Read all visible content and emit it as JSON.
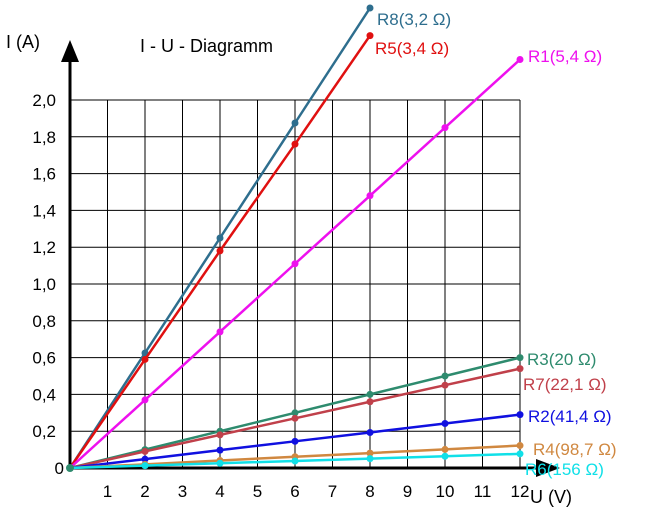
{
  "chart_data": {
    "type": "line",
    "title": "I - U - Diagramm",
    "xlabel": "U (V)",
    "ylabel": "I (A)",
    "xlim": [
      0,
      12
    ],
    "ylim": [
      0,
      2.0
    ],
    "x_ticks": [
      "1",
      "2",
      "3",
      "4",
      "5",
      "6",
      "7",
      "8",
      "9",
      "10",
      "11",
      "12"
    ],
    "y_ticks": [
      "0,2",
      "0,4",
      "0,6",
      "0,8",
      "1,0",
      "1,2",
      "1,4",
      "1,6",
      "1,8",
      "2,0"
    ],
    "origin_label": "0",
    "grid": true,
    "series": [
      {
        "name": "R8(3,2 Ω)",
        "color": "#2e6e8e",
        "x": [
          0,
          2,
          4,
          6,
          8
        ],
        "y": [
          0,
          0.625,
          1.25,
          1.875,
          2.5
        ]
      },
      {
        "name": "R5(3,4 Ω)",
        "color": "#e01010",
        "x": [
          0,
          2,
          4,
          6,
          8
        ],
        "y": [
          0,
          0.59,
          1.18,
          1.76,
          2.35
        ]
      },
      {
        "name": "R1(5,4 Ω)",
        "color": "#ee10ee",
        "x": [
          0,
          2,
          4,
          6,
          8,
          10,
          12
        ],
        "y": [
          0,
          0.37,
          0.74,
          1.11,
          1.48,
          1.85,
          2.22
        ]
      },
      {
        "name": "R3(20 Ω)",
        "color": "#2e8b6e",
        "x": [
          0,
          2,
          4,
          6,
          8,
          10,
          12
        ],
        "y": [
          0,
          0.1,
          0.2,
          0.3,
          0.4,
          0.5,
          0.6
        ]
      },
      {
        "name": "R7(22,1 Ω)",
        "color": "#c0404a",
        "x": [
          0,
          2,
          4,
          6,
          8,
          10,
          12
        ],
        "y": [
          0,
          0.09,
          0.18,
          0.27,
          0.36,
          0.45,
          0.54
        ]
      },
      {
        "name": "R2(41,4  Ω)",
        "color": "#1010e0",
        "x": [
          0,
          2,
          4,
          6,
          8,
          10,
          12
        ],
        "y": [
          0,
          0.048,
          0.097,
          0.145,
          0.193,
          0.242,
          0.29
        ]
      },
      {
        "name": "R4(98,7  Ω)",
        "color": "#d08840",
        "x": [
          0,
          2,
          4,
          6,
          8,
          10,
          12
        ],
        "y": [
          0,
          0.02,
          0.041,
          0.061,
          0.081,
          0.101,
          0.122
        ]
      },
      {
        "name": "R6(156 Ω)",
        "color": "#10e0e8",
        "x": [
          0,
          2,
          4,
          6,
          8,
          10,
          12
        ],
        "y": [
          0,
          0.013,
          0.026,
          0.038,
          0.051,
          0.064,
          0.077
        ]
      }
    ]
  }
}
